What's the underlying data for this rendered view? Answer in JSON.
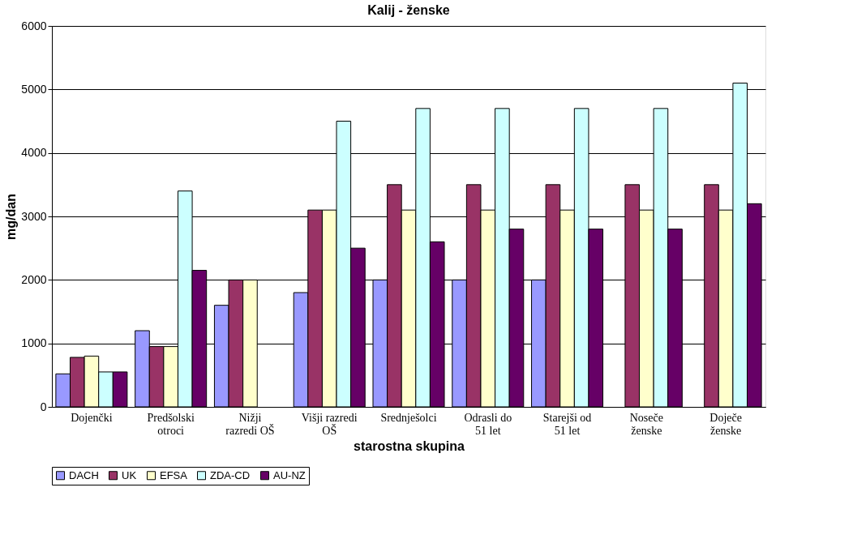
{
  "chart_data": {
    "type": "bar",
    "title": "Kalij  - ženske",
    "xlabel": "starostna skupina",
    "ylabel": "mg/dan",
    "categories": [
      "Dojenčki",
      "Predšolski\notroci",
      "Nižji\nrazredi OŠ",
      "Višji razredi\nOŠ",
      "Srednješolci",
      "Odrasli do\n51 let",
      "Starejši od\n51 let",
      "Noseče\nženske",
      "Doječe\nženske"
    ],
    "series": [
      {
        "name": "DACH",
        "color": "#9999ff",
        "values": [
          520,
          1200,
          1600,
          1800,
          2000,
          2000,
          2000,
          null,
          null
        ]
      },
      {
        "name": "UK",
        "color": "#993366",
        "values": [
          780,
          950,
          2000,
          3100,
          3500,
          3500,
          3500,
          3500,
          3500
        ]
      },
      {
        "name": "EFSA",
        "color": "#ffffcc",
        "values": [
          800,
          950,
          2000,
          3100,
          3100,
          3100,
          3100,
          3100,
          3100
        ]
      },
      {
        "name": "ZDA-CD",
        "color": "#ccffff",
        "values": [
          550,
          3400,
          null,
          4500,
          4700,
          4700,
          4700,
          4700,
          5100
        ]
      },
      {
        "name": "AU-NZ",
        "color": "#660066",
        "values": [
          550,
          2150,
          null,
          2500,
          2600,
          2800,
          2800,
          2800,
          3200
        ]
      }
    ],
    "ylim": [
      0,
      6000
    ],
    "yticks": [
      0,
      1000,
      2000,
      3000,
      4000,
      5000,
      6000
    ],
    "grid": "y",
    "legend": "bottom"
  }
}
